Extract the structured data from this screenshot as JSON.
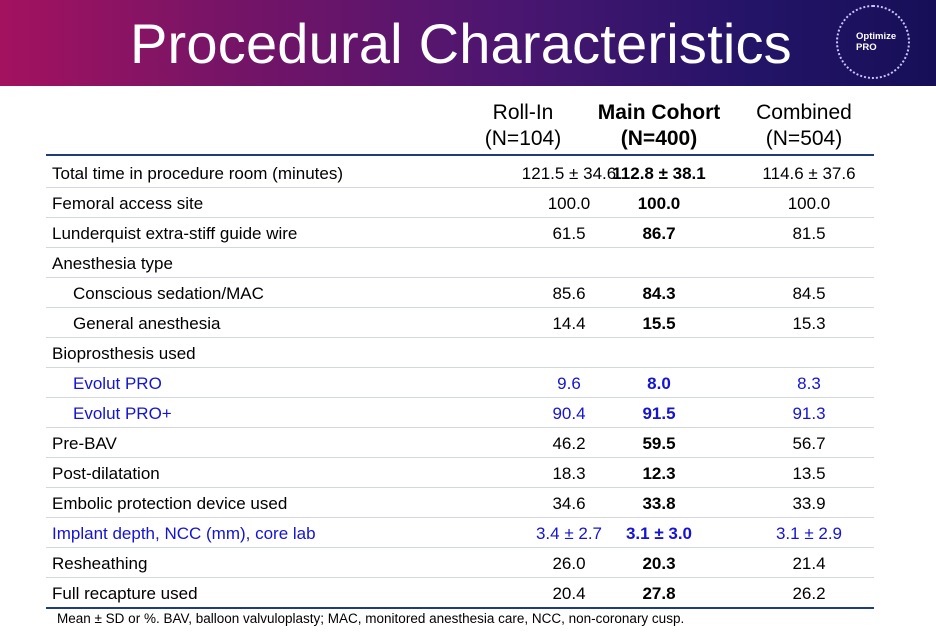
{
  "slide": {
    "title": "Procedural Characteristics",
    "logo": {
      "line1": "Optimize",
      "line2": "PRO"
    },
    "footnote": "Mean ± SD  or %. BAV, balloon valvuloplasty; MAC, monitored anesthesia care, NCC, non-coronary cusp."
  },
  "table": {
    "columns": [
      {
        "line1": "Roll-In",
        "line2": "(N=104)"
      },
      {
        "line1": "Main Cohort",
        "line2": "(N=400)"
      },
      {
        "line1": "Combined",
        "line2": "(N=504)"
      }
    ],
    "rows": [
      {
        "label": "Total time in procedure room (minutes)",
        "v1": "121.5 ± 34.6",
        "v2": "112.8 ± 38.1",
        "v3": "114.6 ± 37.6"
      },
      {
        "label": "Femoral access site",
        "v1": "100.0",
        "v2": "100.0",
        "v3": "100.0"
      },
      {
        "label": "Lunderquist extra-stiff guide wire",
        "v1": "61.5",
        "v2": "86.7",
        "v3": "81.5"
      },
      {
        "label": "Anesthesia type",
        "v1": "",
        "v2": "",
        "v3": ""
      },
      {
        "label": "Conscious sedation/MAC",
        "v1": "85.6",
        "v2": "84.3",
        "v3": "84.5"
      },
      {
        "label": "General anesthesia",
        "v1": "14.4",
        "v2": "15.5",
        "v3": "15.3"
      },
      {
        "label": "Bioprosthesis used",
        "v1": "",
        "v2": "",
        "v3": ""
      },
      {
        "label": "Evolut PRO",
        "v1": "9.6",
        "v2": "8.0",
        "v3": "8.3"
      },
      {
        "label": "Evolut PRO+",
        "v1": "90.4",
        "v2": "91.5",
        "v3": "91.3"
      },
      {
        "label": "Pre-BAV",
        "v1": "46.2",
        "v2": "59.5",
        "v3": "56.7"
      },
      {
        "label": "Post-dilatation",
        "v1": "18.3",
        "v2": "12.3",
        "v3": "13.5"
      },
      {
        "label": "Embolic protection device used",
        "v1": "34.6",
        "v2": "33.8",
        "v3": "33.9"
      },
      {
        "label": "Implant depth, NCC (mm), core lab",
        "v1": "3.4 ± 2.7",
        "v2": "3.1 ± 3.0",
        "v3": "3.1 ± 2.9"
      },
      {
        "label": "Resheathing",
        "v1": "26.0",
        "v2": "20.3",
        "v3": "21.4"
      },
      {
        "label": "Full recapture used",
        "v1": "20.4",
        "v2": "27.8",
        "v3": "26.2"
      }
    ]
  },
  "colors": {
    "banner_start": "#a3125f",
    "banner_end": "#160f57",
    "highlight_text": "#1414d2",
    "rule": "#1f3d7a"
  }
}
